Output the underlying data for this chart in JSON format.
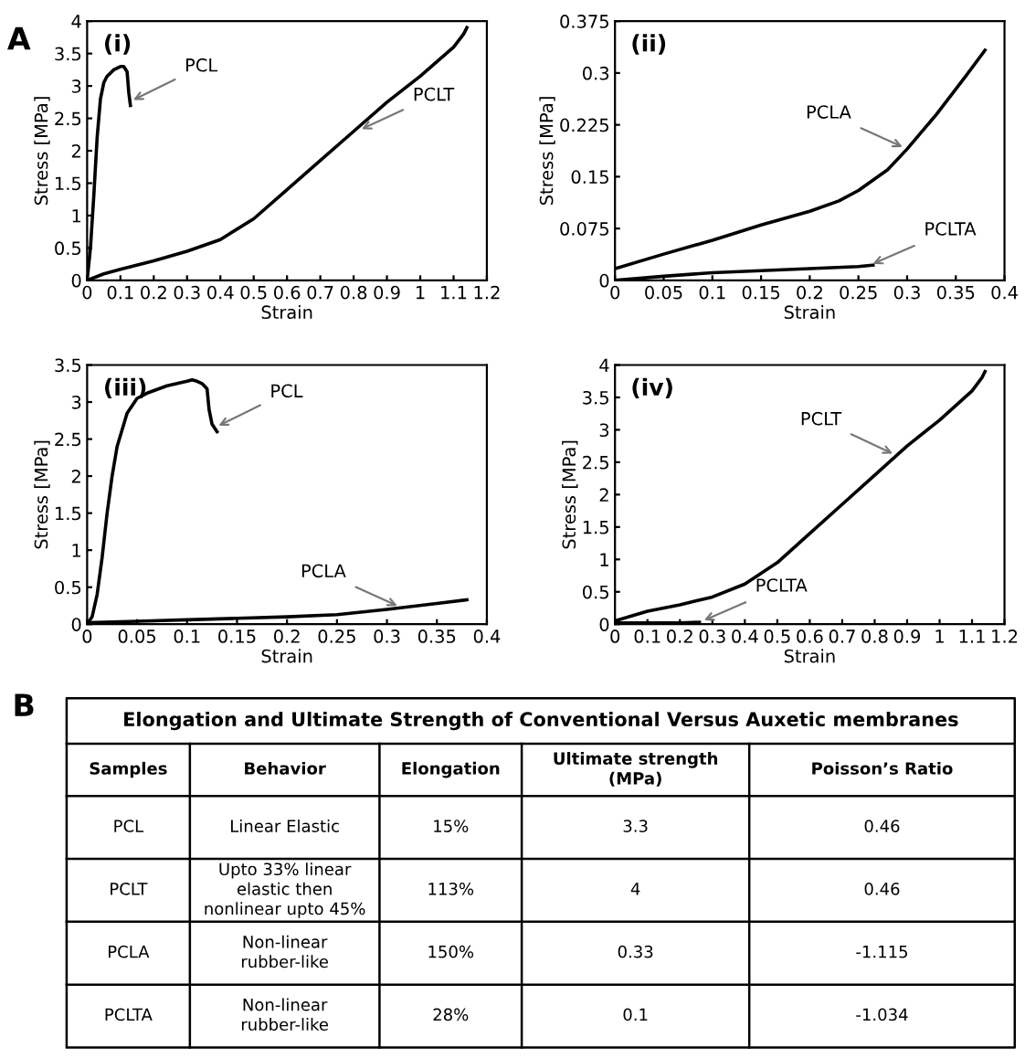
{
  "chart_data": [
    {
      "type": "line",
      "xlabel": "Strain",
      "ylabel": "Stress [MPa]",
      "xlim": [
        0,
        1.2
      ],
      "ylim": [
        0,
        4
      ],
      "xticks": [
        0,
        0.1,
        0.2,
        0.3,
        0.4,
        0.5,
        0.6,
        0.7,
        0.8,
        0.9,
        1,
        1.1,
        1.2
      ],
      "yticks": [
        0,
        0.5,
        1,
        1.5,
        2,
        2.5,
        3,
        3.5,
        4
      ],
      "grid": false,
      "marker": "none",
      "line_style": "solid",
      "annotations": [
        "A",
        "(i)",
        {
          "text": "PCL",
          "x": 0.125,
          "y": 2.75
        },
        {
          "text": "PCLT",
          "x": 0.81,
          "y": 2.3
        }
      ],
      "series": [
        {
          "color": "#000000",
          "x": [
            0,
            0.01,
            0.02,
            0.03,
            0.04,
            0.05,
            0.06,
            0.08,
            0.1,
            0.11,
            0.12,
            0.125,
            0.13
          ],
          "values": [
            0,
            0.5,
            1.3,
            2.2,
            2.8,
            3.05,
            3.15,
            3.25,
            3.3,
            3.3,
            3.22,
            2.9,
            2.7
          ]
        },
        {
          "color": "#000000",
          "x": [
            0,
            0.05,
            0.1,
            0.2,
            0.3,
            0.4,
            0.5,
            0.6,
            0.7,
            0.8,
            0.9,
            1.0,
            1.1,
            1.13,
            1.14
          ],
          "values": [
            0,
            0.1,
            0.17,
            0.3,
            0.45,
            0.63,
            0.95,
            1.4,
            1.85,
            2.3,
            2.75,
            3.15,
            3.6,
            3.8,
            3.9
          ]
        }
      ]
    },
    {
      "type": "line",
      "xlabel": "Strain",
      "ylabel": "Stress [MPa]",
      "xlim": [
        0,
        0.4
      ],
      "ylim": [
        0,
        0.375
      ],
      "xticks": [
        0,
        0.05,
        0.1,
        0.15,
        0.2,
        0.25,
        0.3,
        0.35,
        0.4
      ],
      "yticks": [
        0,
        0.075,
        0.15,
        0.225,
        0.3,
        0.375
      ],
      "grid": false,
      "marker": "none",
      "line_style": "solid",
      "annotations": [
        "(ii)",
        {
          "text": "PCLA",
          "x": 0.3,
          "y": 0.19
        },
        {
          "text": "PCLTA",
          "x": 0.26,
          "y": 0.021
        }
      ],
      "series": [
        {
          "color": "#000000",
          "x": [
            0,
            0.05,
            0.1,
            0.15,
            0.2,
            0.23,
            0.25,
            0.28,
            0.3,
            0.33,
            0.36,
            0.38
          ],
          "values": [
            0.017,
            0.038,
            0.058,
            0.08,
            0.1,
            0.115,
            0.13,
            0.16,
            0.19,
            0.24,
            0.295,
            0.333
          ]
        },
        {
          "color": "#000000",
          "x": [
            0,
            0.05,
            0.1,
            0.15,
            0.2,
            0.25,
            0.265
          ],
          "values": [
            0,
            0.006,
            0.011,
            0.014,
            0.017,
            0.02,
            0.022
          ]
        }
      ]
    },
    {
      "type": "line",
      "xlabel": "Strain",
      "ylabel": "Stress [MPa]",
      "xlim": [
        0,
        0.4
      ],
      "ylim": [
        0,
        3.5
      ],
      "xticks": [
        0,
        0.05,
        0.1,
        0.15,
        0.2,
        0.25,
        0.3,
        0.35,
        0.4
      ],
      "yticks": [
        0,
        0.5,
        1,
        1.5,
        2,
        2.5,
        3,
        3.5
      ],
      "grid": false,
      "marker": "none",
      "line_style": "solid",
      "annotations": [
        "(iii)",
        {
          "text": "PCL",
          "x": 0.127,
          "y": 2.65
        },
        {
          "text": "PCLA",
          "x": 0.315,
          "y": 0.22
        }
      ],
      "series": [
        {
          "color": "#000000",
          "x": [
            0,
            0.005,
            0.01,
            0.015,
            0.02,
            0.025,
            0.03,
            0.04,
            0.05,
            0.06,
            0.08,
            0.1,
            0.105,
            0.11,
            0.115,
            0.12,
            0.122,
            0.125,
            0.13
          ],
          "values": [
            0,
            0.1,
            0.4,
            0.9,
            1.5,
            2.0,
            2.4,
            2.85,
            3.05,
            3.12,
            3.22,
            3.28,
            3.3,
            3.28,
            3.25,
            3.18,
            2.9,
            2.7,
            2.6
          ]
        },
        {
          "color": "#000000",
          "x": [
            0,
            0.05,
            0.1,
            0.15,
            0.2,
            0.25,
            0.3,
            0.35,
            0.38
          ],
          "values": [
            0.02,
            0.04,
            0.06,
            0.08,
            0.1,
            0.13,
            0.2,
            0.28,
            0.33
          ]
        }
      ]
    },
    {
      "type": "line",
      "xlabel": "Strain",
      "ylabel": "Stress [MPa]",
      "xlim": [
        0,
        1.2
      ],
      "ylim": [
        0,
        4
      ],
      "xticks": [
        0,
        0.1,
        0.2,
        0.3,
        0.4,
        0.5,
        0.6,
        0.7,
        0.8,
        0.9,
        1,
        1.1,
        1.2
      ],
      "yticks": [
        0,
        0.5,
        1,
        1.5,
        2,
        2.5,
        3,
        3.5,
        4
      ],
      "grid": false,
      "marker": "none",
      "line_style": "solid",
      "annotations": [
        "(iv)",
        {
          "text": "PCLT",
          "x": 0.87,
          "y": 2.6
        },
        {
          "text": "PCLTA",
          "x": 0.26,
          "y": 0.03
        }
      ],
      "series": [
        {
          "color": "#000000",
          "x": [
            0,
            0.1,
            0.2,
            0.3,
            0.4,
            0.5,
            0.6,
            0.7,
            0.8,
            0.9,
            1.0,
            1.1,
            1.13,
            1.14
          ],
          "values": [
            0.05,
            0.2,
            0.3,
            0.42,
            0.62,
            0.95,
            1.4,
            1.85,
            2.3,
            2.75,
            3.15,
            3.6,
            3.8,
            3.9
          ]
        },
        {
          "color": "#000000",
          "x": [
            0,
            0.1,
            0.2,
            0.26
          ],
          "values": [
            0.02,
            0.02,
            0.02,
            0.03
          ]
        }
      ]
    },
    {
      "type": "other",
      "title": "Elongation and Ultimate Strength of Conventional Versus Auxetic membranes",
      "categories": [
        "Samples",
        "Behavior",
        "Elongation",
        "Ultimate strength (MPa)",
        "Poisson’s Ratio"
      ],
      "annotations": [
        "B",
        "PCL",
        "Linear Elastic",
        "15%",
        "3.3",
        "0.46",
        "PCLT",
        "Upto 33% linear elastic then nonlinear upto 45%",
        "113%",
        "4",
        "0.46",
        "PCLA",
        "Non-linear rubber-like",
        "150%",
        "0.33",
        "-1.115",
        "PCLTA",
        "Non-linear rubber-like",
        "28%",
        "0.1",
        "-1.034"
      ]
    }
  ]
}
